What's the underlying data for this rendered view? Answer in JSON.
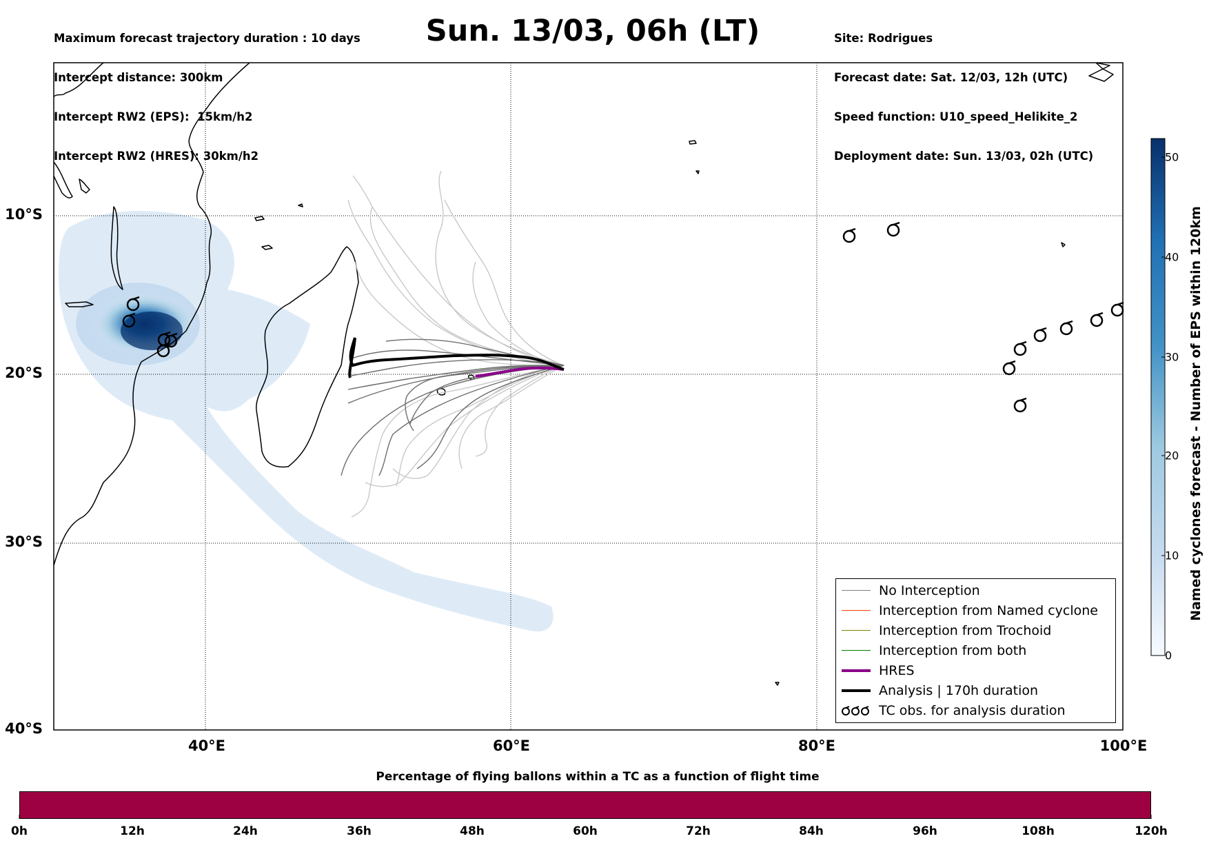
{
  "header": {
    "left_lines": [
      "Maximum forecast trajectory duration : 10 days",
      "Intercept distance: 300km",
      "Intercept RW2 (EPS):  15km/h2",
      "Intercept RW2 (HRES): 30km/h2"
    ],
    "title": "Sun. 13/03, 06h (LT)",
    "right_lines": [
      "Site: Rodrigues",
      "Forecast date: Sat. 12/03, 12h (UTC)",
      "Speed function: U10_speed_Helikite_2",
      "Deployment date: Sun. 13/03, 02h (UTC)"
    ]
  },
  "map": {
    "lat_labels": [
      "10°S",
      "20°S",
      "30°S",
      "40°S"
    ],
    "lon_labels": [
      "40°E",
      "60°E",
      "80°E",
      "100°E"
    ],
    "extent": {
      "lon_min": 30,
      "lon_max": 100,
      "lat_max": -0.3,
      "lat_min": -40
    }
  },
  "legend": {
    "items": [
      {
        "label": "No Interception",
        "color": "#808080"
      },
      {
        "label": "Interception from Named cyclone",
        "color": "#ff4500"
      },
      {
        "label": "Interception from Trochoid",
        "color": "#808000"
      },
      {
        "label": "Interception from both",
        "color": "#008000"
      },
      {
        "label": "HRES",
        "color": "#8b008b"
      },
      {
        "label": "Analysis | 170h duration",
        "color": "#000000"
      },
      {
        "label": "TC obs. for analysis duration",
        "icon": "cyclone-symbol-icon"
      }
    ]
  },
  "colorbar": {
    "label": "Named cyclones forecast - Number of EPS within 120km",
    "ticks": [
      "0",
      "10",
      "20",
      "30",
      "40",
      "50"
    ],
    "colors": [
      "#deebf7",
      "#08306b"
    ]
  },
  "flight_bar": {
    "title": "Percentage of flying ballons within a TC as a function of flight time",
    "color": "#9e0142",
    "labels": [
      "0h",
      "12h",
      "24h",
      "36h",
      "48h",
      "60h",
      "72h",
      "84h",
      "96h",
      "108h",
      "120h"
    ]
  }
}
